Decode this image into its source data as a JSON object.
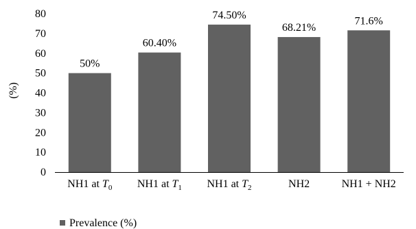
{
  "chart_data": {
    "type": "bar",
    "categories": [
      {
        "base": "NH1 at T",
        "sub": "0"
      },
      {
        "base": "NH1 at T",
        "sub": "1"
      },
      {
        "base": "NH1 at T",
        "sub": "2"
      },
      {
        "base": "NH2",
        "sub": ""
      },
      {
        "base": "NH1 + NH2",
        "sub": ""
      }
    ],
    "values": [
      50,
      60.4,
      74.5,
      68.21,
      71.6
    ],
    "data_labels": [
      "50%",
      "60.40%",
      "74.50%",
      "68.21%",
      "71.6%"
    ],
    "ylabel": "(%)",
    "ylim": [
      0,
      80
    ],
    "yticks": [
      0,
      10,
      20,
      30,
      40,
      50,
      60,
      70,
      80
    ],
    "series": [
      {
        "name": "Prevalence (%)",
        "color": "#616161"
      }
    ],
    "legend_placement": "bottom-left",
    "grid": false
  }
}
